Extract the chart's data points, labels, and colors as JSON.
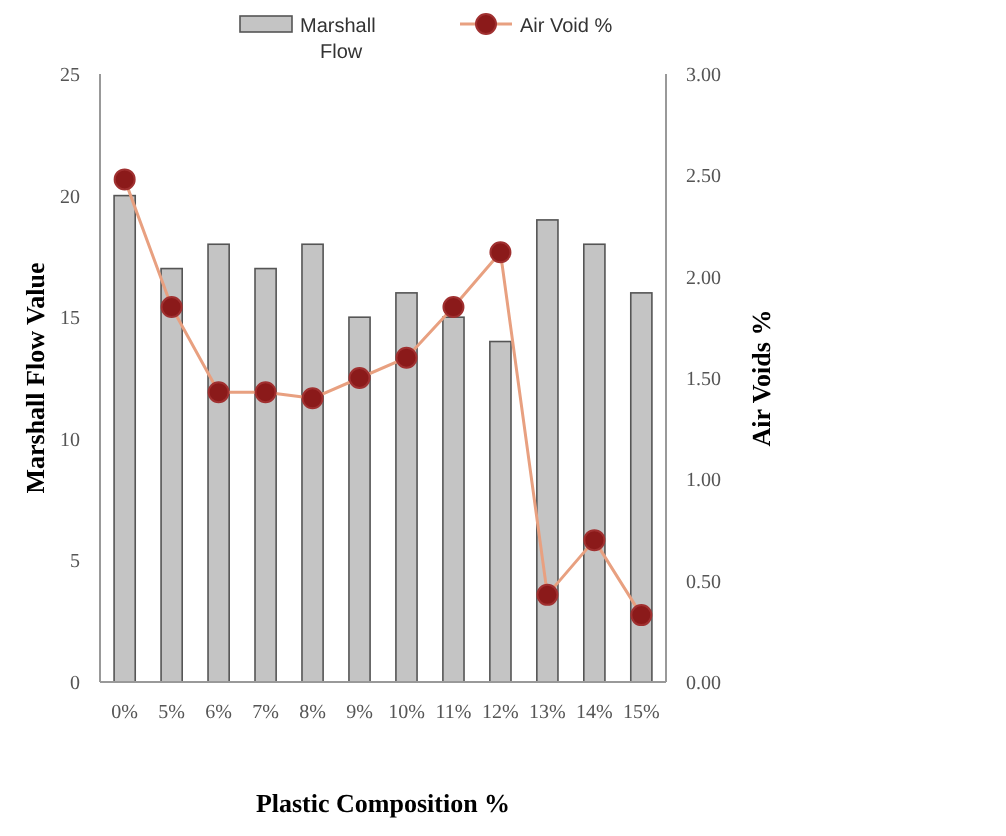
{
  "chart_data": {
    "type": "bar",
    "xlabel": "Plastic Composition %",
    "ylabel": "Marshall Flow Value",
    "y2label": "Air Voids %",
    "categories": [
      "0%",
      "5%",
      "6%",
      "7%",
      "8%",
      "9%",
      "10%",
      "11%",
      "12%",
      "13%",
      "14%",
      "15%"
    ],
    "series": [
      {
        "name": "Marshall Flow",
        "color": "#c4c4c4",
        "values": [
          20,
          17,
          18,
          17,
          18,
          15,
          16,
          15,
          14,
          19,
          18,
          16
        ]
      },
      {
        "name": "Air Void %",
        "type": "line",
        "axis": "y2",
        "color": "#e8a080",
        "marker": "circle",
        "values": [
          2.48,
          1.85,
          1.43,
          1.43,
          1.4,
          1.5,
          1.6,
          1.85,
          2.12,
          0.43,
          0.7,
          0.33
        ]
      }
    ],
    "ylim": [
      0,
      25
    ],
    "yticks": [
      0,
      5,
      10,
      15,
      20,
      25
    ],
    "y2lim": [
      0,
      3
    ],
    "y2ticks": [
      {
        "value": 0,
        "label": "0.00"
      },
      {
        "value": 0.5,
        "label": "0.50"
      },
      {
        "value": 1,
        "label": "1.00"
      },
      {
        "value": 1.5,
        "label": "1.50"
      },
      {
        "value": 2,
        "label": "2.00"
      },
      {
        "value": 2.5,
        "label": "2.50"
      },
      {
        "value": 3,
        "label": "3.00"
      }
    ],
    "legend": "top",
    "grid": false
  }
}
